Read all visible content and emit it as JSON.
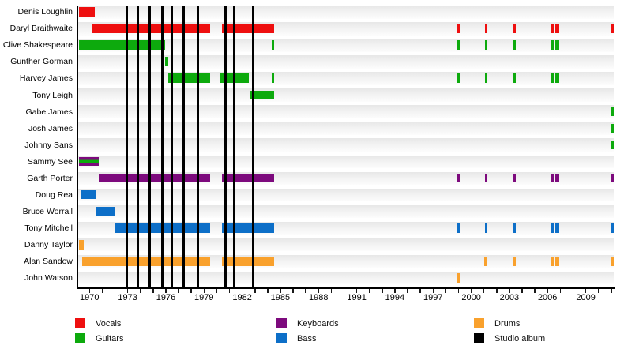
{
  "page": {
    "background": "#ffffff"
  },
  "chart_data": {
    "type": "timeline",
    "title": "",
    "legend_position": "bottom",
    "grid": false,
    "x_axis": {
      "domain": [
        1969.05,
        2011.2
      ],
      "tick_labels": [
        "1970",
        "1973",
        "1976",
        "1979",
        "1982",
        "1985",
        "1988",
        "1991",
        "1994",
        "1997",
        "2000",
        "2003",
        "2006",
        "2009"
      ],
      "label_interval_years": 3,
      "minor_tick_range": [
        1970,
        2011
      ]
    },
    "colors": {
      "vocals": "#ee0f0f",
      "guitars": "#0daa0d",
      "keyboards": "#7d0a7d",
      "bass": "#0d6fc8",
      "drums": "#f9a12d",
      "album": "#000000"
    },
    "album_years": [
      1972.95,
      1973.8,
      1974.7,
      1975.73,
      1976.48,
      1977.4,
      1978.5,
      1980.72,
      1981.4,
      1982.85
    ],
    "rows": [
      {
        "name": "Denis Loughlin",
        "instrument": "vocals",
        "bars": [
          [
            1969.2,
            1970.4
          ]
        ]
      },
      {
        "name": "Daryl Braithwaite",
        "instrument": "vocals",
        "bars": [
          [
            1970.2,
            1979.5
          ],
          [
            1980.4,
            1984.5
          ],
          [
            1998.9,
            1999.15
          ],
          [
            2001.05,
            2001.25
          ],
          [
            2003.3,
            2003.5
          ],
          [
            2006.3,
            2006.5
          ],
          [
            2006.6,
            2006.95
          ],
          [
            2010.95,
            2011.2
          ]
        ]
      },
      {
        "name": "Clive Shakespeare",
        "instrument": "guitars",
        "bars": [
          [
            1969.2,
            1975.95
          ],
          [
            1984.3,
            1984.5
          ],
          [
            1998.9,
            1999.15
          ],
          [
            2001.05,
            2001.25
          ],
          [
            2003.3,
            2003.5
          ],
          [
            2006.3,
            2006.5
          ],
          [
            2006.6,
            2006.95
          ]
        ]
      },
      {
        "name": "Gunther Gorman",
        "instrument": "guitars",
        "bars": [
          [
            1975.95,
            1976.18
          ]
        ]
      },
      {
        "name": "Harvey James",
        "instrument": "guitars",
        "bars": [
          [
            1976.2,
            1979.45
          ],
          [
            1980.3,
            1982.55
          ],
          [
            1984.3,
            1984.5
          ],
          [
            1998.9,
            1999.15
          ],
          [
            2001.05,
            2001.25
          ],
          [
            2003.3,
            2003.5
          ],
          [
            2006.3,
            2006.5
          ],
          [
            2006.6,
            2006.95
          ]
        ]
      },
      {
        "name": "Tony Leigh",
        "instrument": "guitars",
        "bars": [
          [
            1982.55,
            1984.5
          ]
        ]
      },
      {
        "name": "Gabe James",
        "instrument": "guitars",
        "bars": [
          [
            2010.95,
            2011.2
          ]
        ]
      },
      {
        "name": "Josh James",
        "instrument": "guitars",
        "bars": [
          [
            2010.95,
            2011.2
          ]
        ]
      },
      {
        "name": "Johnny Sans",
        "instrument": "guitars",
        "bars": [
          [
            2010.95,
            2011.2
          ]
        ]
      },
      {
        "name": "Sammy See",
        "instrument": "keyboards",
        "stripe": "guitars",
        "bars": [
          [
            1969.2,
            1970.7
          ]
        ]
      },
      {
        "name": "Garth Porter",
        "instrument": "keyboards",
        "bars": [
          [
            1970.7,
            1979.5
          ],
          [
            1980.4,
            1984.5
          ],
          [
            1998.9,
            1999.15
          ],
          [
            2001.05,
            2001.25
          ],
          [
            2003.3,
            2003.5
          ],
          [
            2006.3,
            2006.5
          ],
          [
            2006.6,
            2006.95
          ],
          [
            2010.95,
            2011.2
          ]
        ]
      },
      {
        "name": "Doug Rea",
        "instrument": "bass",
        "bars": [
          [
            1969.3,
            1970.55
          ]
        ]
      },
      {
        "name": "Bruce Worrall",
        "instrument": "bass",
        "bars": [
          [
            1970.45,
            1972.0
          ]
        ]
      },
      {
        "name": "Tony Mitchell",
        "instrument": "bass",
        "bars": [
          [
            1971.95,
            1979.5
          ],
          [
            1980.4,
            1984.5
          ],
          [
            1998.9,
            1999.15
          ],
          [
            2001.05,
            2001.25
          ],
          [
            2003.3,
            2003.5
          ],
          [
            2006.3,
            2006.5
          ],
          [
            2006.6,
            2006.95
          ],
          [
            2010.95,
            2011.2
          ]
        ]
      },
      {
        "name": "Danny Taylor",
        "instrument": "drums",
        "bars": [
          [
            1969.2,
            1969.55
          ]
        ]
      },
      {
        "name": "Alan Sandow",
        "instrument": "drums",
        "bars": [
          [
            1969.45,
            1979.5
          ],
          [
            1980.4,
            1984.5
          ],
          [
            2001.0,
            2001.25
          ],
          [
            2003.3,
            2003.5
          ],
          [
            2006.3,
            2006.5
          ],
          [
            2006.6,
            2006.95
          ],
          [
            2010.95,
            2011.2
          ]
        ]
      },
      {
        "name": "John Watson",
        "instrument": "drums",
        "bars": [
          [
            1998.9,
            1999.15
          ]
        ]
      }
    ],
    "legend": {
      "columns": [
        [
          {
            "label": "Vocals",
            "key": "vocals"
          },
          {
            "label": "Guitars",
            "key": "guitars"
          }
        ],
        [
          {
            "label": "Keyboards",
            "key": "keyboards"
          },
          {
            "label": "Bass",
            "key": "bass"
          }
        ],
        [
          {
            "label": "Drums",
            "key": "drums"
          },
          {
            "label": "Studio album",
            "key": "album"
          }
        ]
      ]
    }
  }
}
